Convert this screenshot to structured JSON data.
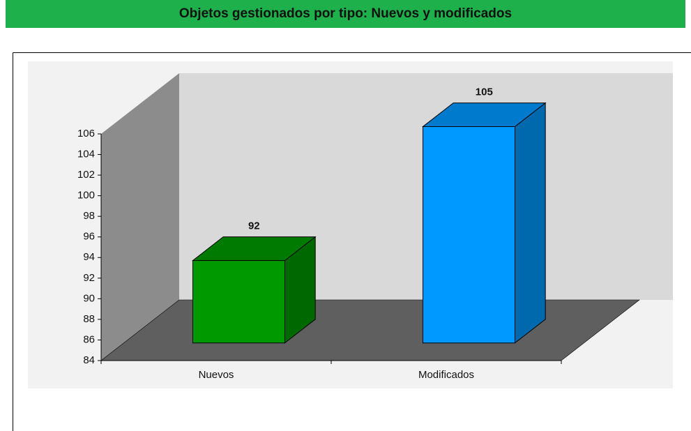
{
  "chart_data": {
    "type": "bar3d",
    "title": "Objetos gestionados por tipo: Nuevos y modificados",
    "categories": [
      "Nuevos",
      "Modificados"
    ],
    "values": [
      92,
      105
    ],
    "colors": [
      "#009900",
      "#0099ff"
    ],
    "ylim": [
      84,
      106
    ],
    "yticks": [
      84,
      86,
      88,
      90,
      92,
      94,
      96,
      98,
      100,
      102,
      104,
      106
    ]
  }
}
